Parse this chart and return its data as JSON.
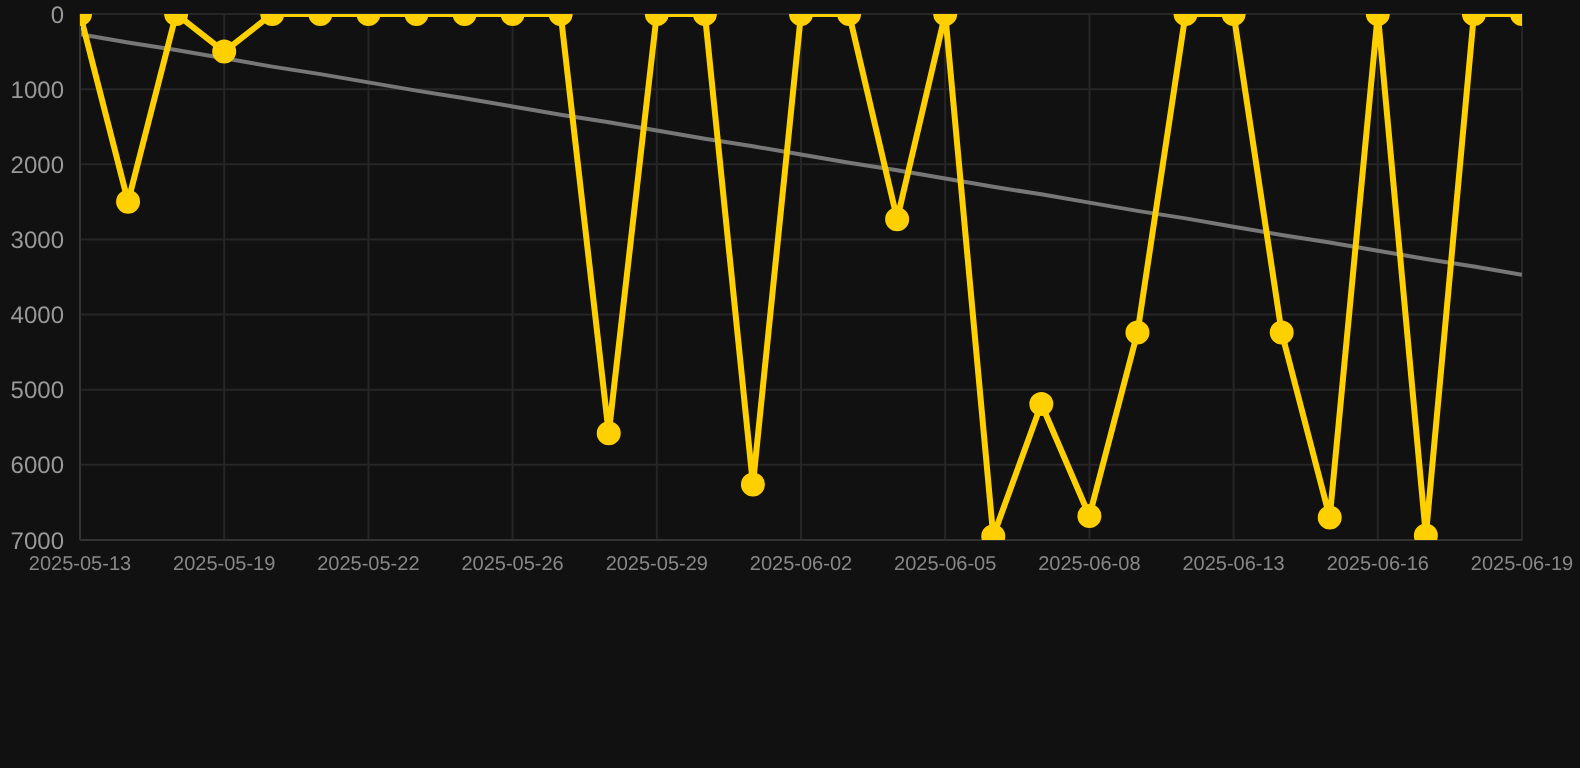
{
  "chart_data": {
    "type": "line",
    "categories": [
      "2025-05-13",
      null,
      null,
      "2025-05-19",
      null,
      null,
      "2025-05-22",
      null,
      null,
      "2025-05-26",
      null,
      null,
      "2025-05-29",
      null,
      null,
      "2025-06-02",
      null,
      null,
      "2025-06-05",
      null,
      null,
      "2025-06-08",
      null,
      null,
      "2025-06-13",
      null,
      null,
      "2025-06-16",
      null,
      null,
      "2025-06-19"
    ],
    "series": [
      {
        "color": "#ffd000",
        "values": [
          0,
          2500,
          0,
          500,
          0,
          0,
          0,
          0,
          0,
          0,
          0,
          5580,
          0,
          0,
          6260,
          0,
          0,
          2730,
          0,
          6950,
          5190,
          6680,
          4240,
          0,
          0,
          4240,
          6700,
          0,
          6940,
          0,
          0
        ]
      },
      {
        "type": "line",
        "color": "#777777",
        "marker": "none",
        "values": [
          270,
          380,
          480,
          590,
          700,
          800,
          910,
          1020,
          1120,
          1230,
          1340,
          1440,
          1550,
          1660,
          1760,
          1870,
          1980,
          2080,
          2190,
          2300,
          2400,
          2510,
          2620,
          2720,
          2830,
          2940,
          3040,
          3150,
          3260,
          3360,
          3470
        ]
      }
    ],
    "ylim": [
      7000,
      0
    ],
    "yticks": [
      0,
      1000,
      2000,
      3000,
      4000,
      5000,
      6000,
      7000
    ],
    "grid": true,
    "marker": "circle",
    "legend": false
  }
}
